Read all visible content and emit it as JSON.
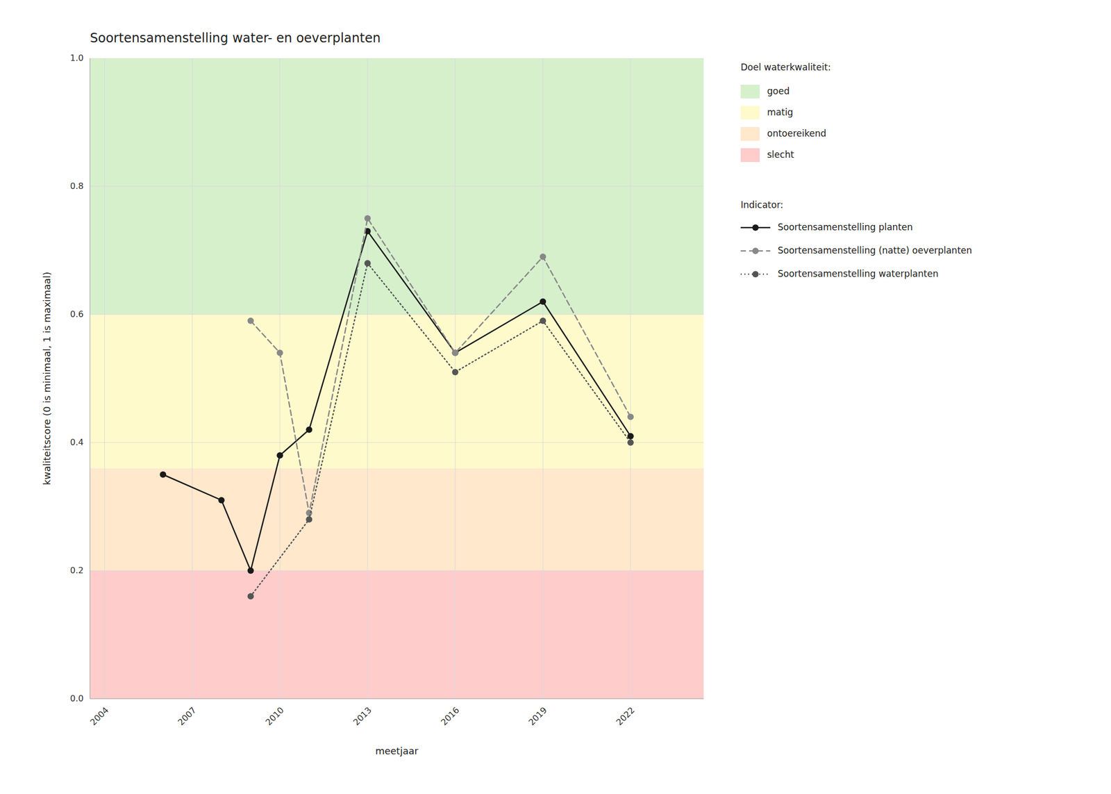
{
  "chart_data": {
    "type": "line",
    "title": "Soortensamenstelling water- en oeverplanten",
    "x_label": "meetjaar",
    "y_label": "kwaliteitscore (0 is minimaal, 1 is maximaal)",
    "xlim": [
      2003.5,
      2024.5
    ],
    "ylim": [
      0.0,
      1.0
    ],
    "xticks": [
      2004,
      2007,
      2010,
      2013,
      2016,
      2019,
      2022
    ],
    "yticks": [
      {
        "value": 0.0,
        "label": "0.0"
      },
      0.2,
      0.4,
      0.6,
      0.8,
      {
        "value": 1.0,
        "label": "1.0"
      }
    ],
    "grid": true,
    "legend": "right",
    "zones_title": "Doel waterkwaliteit:",
    "zones": [
      {
        "name": "slecht",
        "from": 0.0,
        "to": 0.2,
        "color": "#ffcccc"
      },
      {
        "name": "ontoereikend",
        "from": 0.2,
        "to": 0.36,
        "color": "#ffe8cc"
      },
      {
        "name": "matig",
        "from": 0.36,
        "to": 0.6,
        "color": "#fffacc"
      },
      {
        "name": "goed",
        "from": 0.6,
        "to": 1.0,
        "color": "#d6f0cc"
      }
    ],
    "legend_title": "Indicator:",
    "series": [
      {
        "name": "Soortensamenstelling planten",
        "x": [
          2006,
          2008,
          2009,
          2010,
          2011,
          2013,
          2016,
          2019,
          2022
        ],
        "values": [
          0.35,
          0.31,
          0.2,
          0.38,
          0.42,
          0.73,
          0.54,
          0.62,
          0.41
        ],
        "color": "#1a1a1a",
        "line_style": "solid",
        "marker": "circle"
      },
      {
        "name": "Soortensamenstelling (natte) oeverplanten",
        "x": [
          2009,
          2010,
          2011,
          2013,
          2016,
          2019,
          2022
        ],
        "values": [
          0.59,
          0.54,
          0.29,
          0.75,
          0.54,
          0.69,
          0.44
        ],
        "color": "#888888",
        "line_style": "dashed",
        "marker": "circle"
      },
      {
        "name": "Soortensamenstelling waterplanten",
        "x": [
          2009,
          2011,
          2013,
          2016,
          2019,
          2022
        ],
        "values": [
          0.16,
          0.28,
          0.68,
          0.51,
          0.59,
          0.4
        ],
        "color": "#555555",
        "line_style": "dotted",
        "marker": "circle"
      }
    ]
  }
}
